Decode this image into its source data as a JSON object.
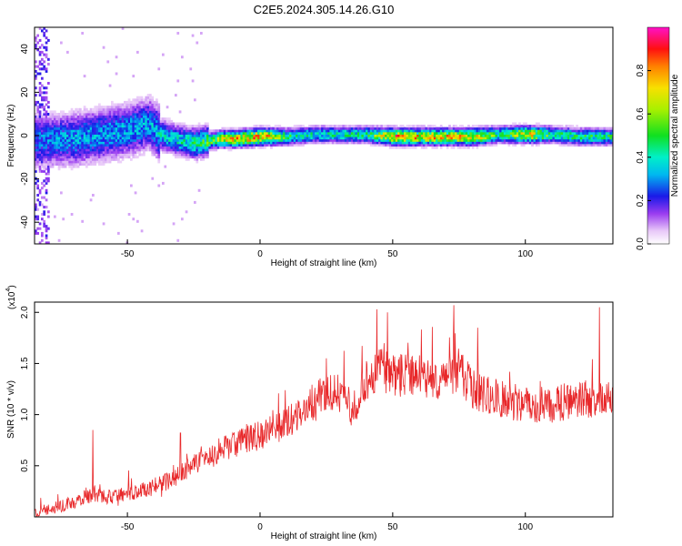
{
  "figure": {
    "title": "C2E5.2024.305.14.26.G10"
  },
  "chart_data": [
    {
      "type": "heatmap",
      "name": "spectrogram",
      "xlabel": "Height of straight line (km)",
      "ylabel": "Frequency (Hz)",
      "xlim": [
        -85,
        133
      ],
      "ylim": [
        -50,
        50
      ],
      "xticks": [
        -50,
        0,
        50,
        100
      ],
      "yticks": [
        -40,
        -20,
        0,
        20,
        40
      ],
      "xtick_labels": [
        "-50",
        "0",
        "50",
        "100"
      ],
      "ytick_labels": [
        "-40",
        "-20",
        "0",
        "20",
        "40"
      ],
      "colorbar": {
        "label": "Normalized spectral amplitude",
        "range": [
          0,
          1
        ],
        "ticks": [
          0.0,
          0.2,
          0.4,
          0.6,
          0.8
        ],
        "tick_labels": [
          "0.0",
          "0.2",
          "0.4",
          "0.6",
          "0.8"
        ]
      },
      "ridge": {
        "x": [
          -85,
          -70,
          -60,
          -50,
          -42,
          -38,
          -30,
          -25,
          -20,
          -15,
          -10,
          0,
          10,
          20,
          30,
          40,
          50,
          60,
          70,
          80,
          90,
          100,
          110,
          120,
          133
        ],
        "freq_hz": [
          -3,
          -2,
          0,
          2,
          5,
          0,
          -3,
          -4,
          -3,
          -2,
          -2,
          -1,
          -1,
          0,
          0,
          0,
          -1,
          -1,
          -1,
          -1,
          0,
          0,
          0,
          -1,
          -1
        ],
        "amplitude": [
          0.3,
          0.35,
          0.35,
          0.35,
          0.35,
          0.4,
          0.45,
          0.5,
          0.55,
          0.7,
          0.8,
          0.9,
          0.5,
          0.45,
          0.45,
          0.5,
          0.85,
          0.8,
          0.8,
          0.8,
          0.5,
          0.8,
          0.5,
          0.5,
          0.5
        ]
      }
    },
    {
      "type": "line",
      "name": "snr",
      "xlabel": "Height of straight line (km)",
      "ylabel": "SNR (10 * v/v)",
      "y_multiplier_label": "(x10",
      "y_multiplier_exp": "4",
      "xlim": [
        -85,
        133
      ],
      "ylim": [
        0,
        2.1
      ],
      "xticks": [
        -50,
        0,
        50,
        100
      ],
      "yticks": [
        0.5,
        1.0,
        1.5,
        2.0
      ],
      "xtick_labels": [
        "-50",
        "0",
        "50",
        "100"
      ],
      "ytick_labels": [
        "0.5",
        "1.0",
        "1.5",
        "2.0"
      ],
      "color": "#e8282a",
      "trend": {
        "x": [
          -85,
          -75,
          -65,
          -55,
          -45,
          -35,
          -25,
          -15,
          -5,
          5,
          15,
          25,
          30,
          35,
          40,
          45,
          50,
          60,
          70,
          75,
          80,
          90,
          100,
          110,
          120,
          133
        ],
        "y": [
          0.05,
          0.1,
          0.2,
          0.2,
          0.25,
          0.35,
          0.5,
          0.65,
          0.75,
          0.85,
          1.0,
          1.25,
          1.2,
          1.05,
          1.35,
          1.45,
          1.4,
          1.35,
          1.3,
          1.45,
          1.25,
          1.15,
          1.1,
          1.1,
          1.15,
          1.15
        ]
      },
      "noise_amplitude": 0.12,
      "peaks": [
        {
          "x": -63,
          "y": 0.85
        },
        {
          "x": -30,
          "y": 0.82
        },
        {
          "x": 25,
          "y": 1.55
        },
        {
          "x": 44,
          "y": 2.03
        },
        {
          "x": 48,
          "y": 2.0
        },
        {
          "x": 73,
          "y": 2.07
        },
        {
          "x": 82,
          "y": 1.85
        },
        {
          "x": 128,
          "y": 2.05
        }
      ]
    }
  ]
}
